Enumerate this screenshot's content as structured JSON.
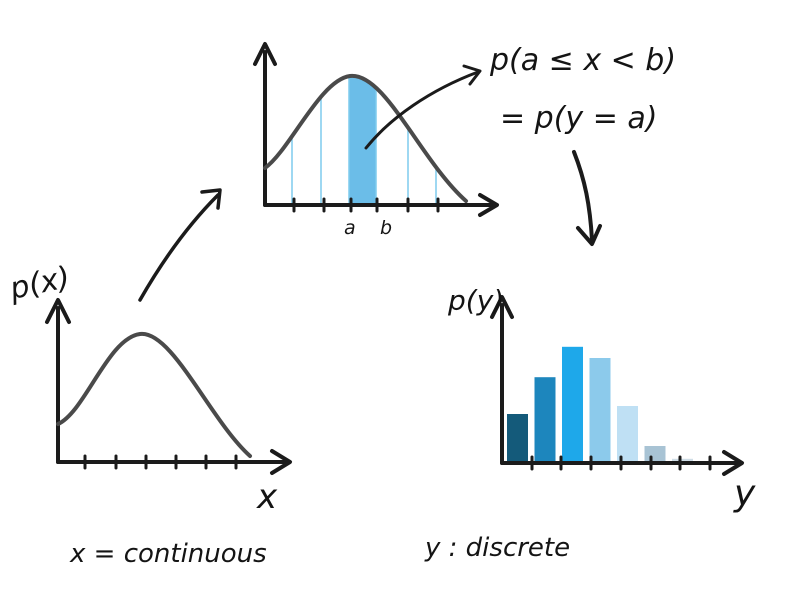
{
  "labels": {
    "px": "p(x)",
    "x_axis": "x",
    "x_caption": "x = continuous",
    "a": "a",
    "b": "b",
    "prob_top": "p(a ≤ x < b)",
    "prob_bottom": "= p(y = a)",
    "py": "p(y)",
    "y_axis": "y",
    "y_caption": "y : discrete"
  },
  "chart_data": {
    "type": "bar",
    "title": "",
    "ylabel": "p(y)",
    "xlabel": "y",
    "values": [
      0.3,
      0.53,
      0.72,
      0.65,
      0.35,
      0.1,
      0.02
    ],
    "colors": [
      "#145a7a",
      "#1d86bd",
      "#1ea8ea",
      "#8ccaeb",
      "#bfe0f4",
      "#a8c3d4",
      "#cfdde6"
    ]
  },
  "colors": {
    "ink": "#1b1b1b",
    "curve": "#4a4a4a",
    "slice_fill": "#6bbde8",
    "slice_line": "#7fcbed"
  }
}
